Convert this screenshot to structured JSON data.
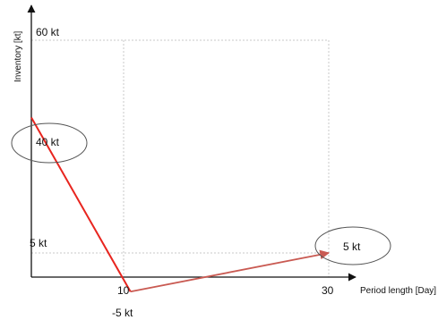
{
  "chart_data": {
    "type": "line",
    "xlabel": "Period length [Day]",
    "ylabel": "Inventory [kt]",
    "xlim": [
      0,
      30
    ],
    "ylim": [
      -5,
      60
    ],
    "x_ticks": [
      "10",
      "30"
    ],
    "y_ticks": [
      "5 kt",
      "60 kt"
    ],
    "grid": true,
    "series": [
      {
        "color": "#e8251f",
        "x": [
          0,
          10
        ],
        "y": [
          40,
          -5
        ]
      },
      {
        "color": "#c95a52",
        "x": [
          10,
          30
        ],
        "y": [
          -5,
          5
        ]
      }
    ],
    "annotations": {
      "start_bubble": "40 kt",
      "end_bubble": "5 kt",
      "min_label": "-5 kt"
    }
  }
}
